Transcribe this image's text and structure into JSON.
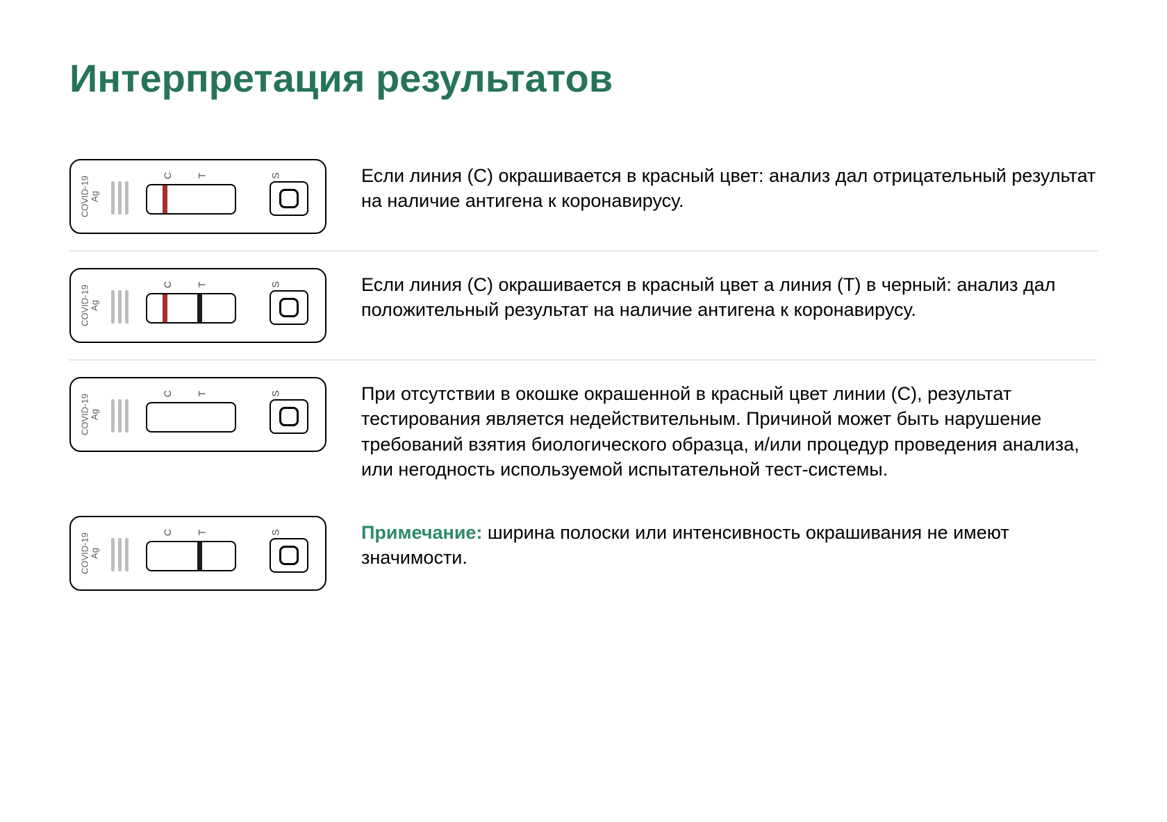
{
  "colors": {
    "heading": "#26735a",
    "note_label": "#2e8a6b",
    "text": "#000000",
    "c_line": "#a82f28",
    "t_line": "#1a1a1a",
    "cassette_border": "#000000",
    "grip": "#bdbdbd",
    "divider": "#d0d0d0",
    "background": "#ffffff"
  },
  "title": "Интерпретация результатов",
  "cassette": {
    "brand_line1": "COVID-19",
    "brand_line2": "Ag",
    "label_c": "C",
    "label_t": "T",
    "label_s": "S"
  },
  "results": [
    {
      "show_c": true,
      "show_t": false,
      "description": "Если линия (С) окрашивается в красный цвет: анализ дал отрицательный результат на наличие антигена к коронавирусу."
    },
    {
      "show_c": true,
      "show_t": true,
      "description": "Если линия (С) окрашивается в красный цвет а линия (T) в черный: анализ дал положительный результат на наличие антигена к коронавирусу."
    },
    {
      "show_c": false,
      "show_t": false,
      "description": "При отсутствии в окошке окрашенной в красный цвет линии (С), результат тестирования является недействительным. Причиной может быть нарушение требований взятия биологического образца, и/или процедур проведения анализа, или негодность используемой испытательной тест-системы."
    },
    {
      "show_c": false,
      "show_t": true,
      "note_label": "Примечание:",
      "note_text": " ширина полоски или интенсивность окрашивания не имеют значимости."
    }
  ]
}
